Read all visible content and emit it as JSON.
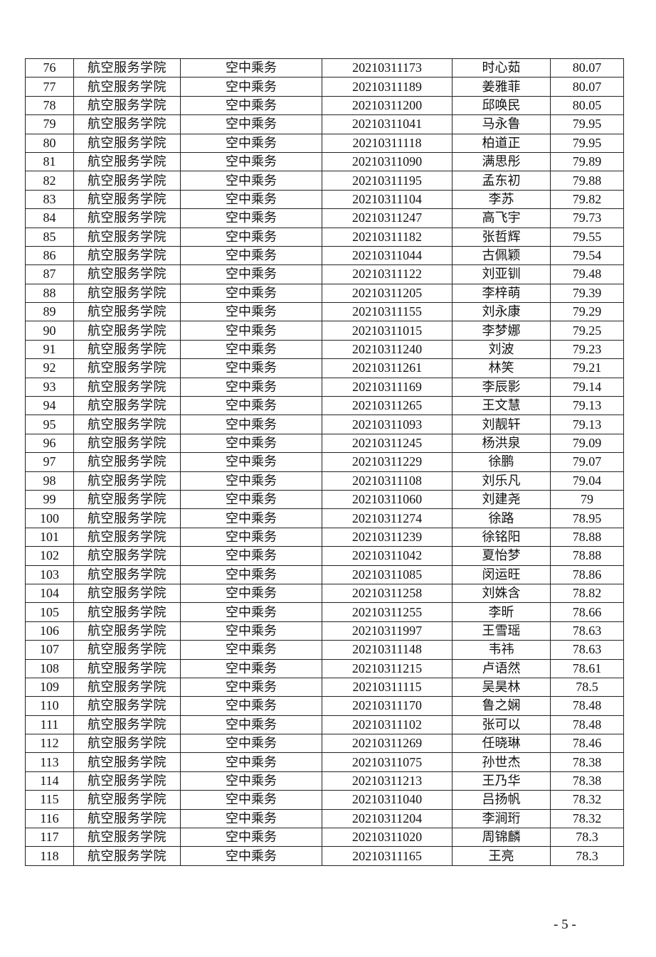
{
  "table": {
    "rows": [
      [
        "76",
        "航空服务学院",
        "空中乘务",
        "20210311173",
        "时心茹",
        "80.07"
      ],
      [
        "77",
        "航空服务学院",
        "空中乘务",
        "20210311189",
        "姜雅菲",
        "80.07"
      ],
      [
        "78",
        "航空服务学院",
        "空中乘务",
        "20210311200",
        "邱唤民",
        "80.05"
      ],
      [
        "79",
        "航空服务学院",
        "空中乘务",
        "20210311041",
        "马永鲁",
        "79.95"
      ],
      [
        "80",
        "航空服务学院",
        "空中乘务",
        "20210311118",
        "柏道正",
        "79.95"
      ],
      [
        "81",
        "航空服务学院",
        "空中乘务",
        "20210311090",
        "满思彤",
        "79.89"
      ],
      [
        "82",
        "航空服务学院",
        "空中乘务",
        "20210311195",
        "孟东初",
        "79.88"
      ],
      [
        "83",
        "航空服务学院",
        "空中乘务",
        "20210311104",
        "李苏",
        "79.82"
      ],
      [
        "84",
        "航空服务学院",
        "空中乘务",
        "20210311247",
        "高飞宇",
        "79.73"
      ],
      [
        "85",
        "航空服务学院",
        "空中乘务",
        "20210311182",
        "张哲辉",
        "79.55"
      ],
      [
        "86",
        "航空服务学院",
        "空中乘务",
        "20210311044",
        "古佩颖",
        "79.54"
      ],
      [
        "87",
        "航空服务学院",
        "空中乘务",
        "20210311122",
        "刘亚钏",
        "79.48"
      ],
      [
        "88",
        "航空服务学院",
        "空中乘务",
        "20210311205",
        "李梓萌",
        "79.39"
      ],
      [
        "89",
        "航空服务学院",
        "空中乘务",
        "20210311155",
        "刘永康",
        "79.29"
      ],
      [
        "90",
        "航空服务学院",
        "空中乘务",
        "20210311015",
        "李梦娜",
        "79.25"
      ],
      [
        "91",
        "航空服务学院",
        "空中乘务",
        "20210311240",
        "刘波",
        "79.23"
      ],
      [
        "92",
        "航空服务学院",
        "空中乘务",
        "20210311261",
        "林笑",
        "79.21"
      ],
      [
        "93",
        "航空服务学院",
        "空中乘务",
        "20210311169",
        "李辰影",
        "79.14"
      ],
      [
        "94",
        "航空服务学院",
        "空中乘务",
        "20210311265",
        "王文慧",
        "79.13"
      ],
      [
        "95",
        "航空服务学院",
        "空中乘务",
        "20210311093",
        "刘靓轩",
        "79.13"
      ],
      [
        "96",
        "航空服务学院",
        "空中乘务",
        "20210311245",
        "杨洪泉",
        "79.09"
      ],
      [
        "97",
        "航空服务学院",
        "空中乘务",
        "20210311229",
        "徐鹏",
        "79.07"
      ],
      [
        "98",
        "航空服务学院",
        "空中乘务",
        "20210311108",
        "刘乐凡",
        "79.04"
      ],
      [
        "99",
        "航空服务学院",
        "空中乘务",
        "20210311060",
        "刘建尧",
        "79"
      ],
      [
        "100",
        "航空服务学院",
        "空中乘务",
        "20210311274",
        "徐路",
        "78.95"
      ],
      [
        "101",
        "航空服务学院",
        "空中乘务",
        "20210311239",
        "徐铭阳",
        "78.88"
      ],
      [
        "102",
        "航空服务学院",
        "空中乘务",
        "20210311042",
        "夏怡梦",
        "78.88"
      ],
      [
        "103",
        "航空服务学院",
        "空中乘务",
        "20210311085",
        "闵运旺",
        "78.86"
      ],
      [
        "104",
        "航空服务学院",
        "空中乘务",
        "20210311258",
        "刘姝含",
        "78.82"
      ],
      [
        "105",
        "航空服务学院",
        "空中乘务",
        "20210311255",
        "李昕",
        "78.66"
      ],
      [
        "106",
        "航空服务学院",
        "空中乘务",
        "20210311997",
        "王雪瑶",
        "78.63"
      ],
      [
        "107",
        "航空服务学院",
        "空中乘务",
        "20210311148",
        "韦祎",
        "78.63"
      ],
      [
        "108",
        "航空服务学院",
        "空中乘务",
        "20210311215",
        "卢语然",
        "78.61"
      ],
      [
        "109",
        "航空服务学院",
        "空中乘务",
        "20210311115",
        "吴昊林",
        "78.5"
      ],
      [
        "110",
        "航空服务学院",
        "空中乘务",
        "20210311170",
        "鲁之娴",
        "78.48"
      ],
      [
        "111",
        "航空服务学院",
        "空中乘务",
        "20210311102",
        "张可以",
        "78.48"
      ],
      [
        "112",
        "航空服务学院",
        "空中乘务",
        "20210311269",
        "任晓琳",
        "78.46"
      ],
      [
        "113",
        "航空服务学院",
        "空中乘务",
        "20210311075",
        "孙世杰",
        "78.38"
      ],
      [
        "114",
        "航空服务学院",
        "空中乘务",
        "20210311213",
        "王乃华",
        "78.38"
      ],
      [
        "115",
        "航空服务学院",
        "空中乘务",
        "20210311040",
        "吕扬帆",
        "78.32"
      ],
      [
        "116",
        "航空服务学院",
        "空中乘务",
        "20210311204",
        "李涧珩",
        "78.32"
      ],
      [
        "117",
        "航空服务学院",
        "空中乘务",
        "20210311020",
        "周锦麟",
        "78.3"
      ],
      [
        "118",
        "航空服务学院",
        "空中乘务",
        "20210311165",
        "王亮",
        "78.3"
      ]
    ]
  },
  "footer": {
    "page_number": "- 5 -"
  }
}
